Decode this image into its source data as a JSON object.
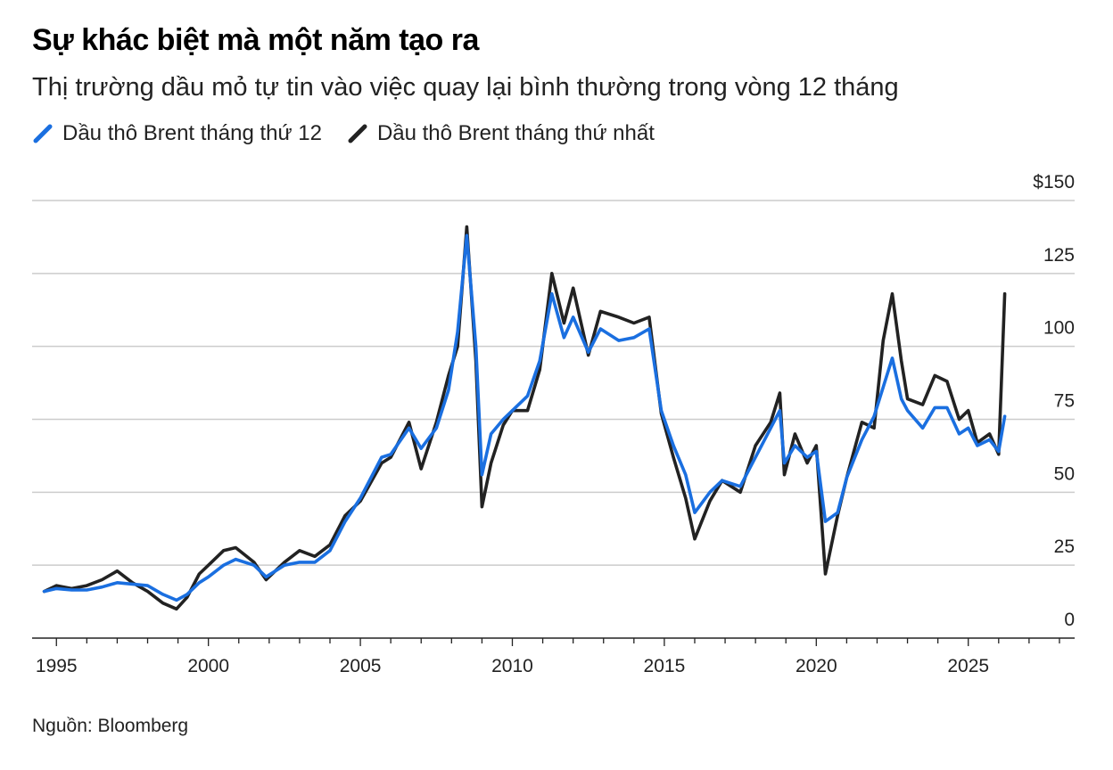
{
  "header": {
    "title": "Sự khác biệt mà một năm tạo ra",
    "subtitle": "Thị trường dầu mỏ tự tin vào việc quay lại bình thường trong vòng 12 tháng"
  },
  "colors": {
    "brent_12m": "#1a6fe0",
    "brent_1m": "#222222",
    "grid": "#cccccc",
    "axis": "#222222"
  },
  "footer": {
    "source": "Nguồn: Bloomberg"
  },
  "chart_data": {
    "type": "line",
    "title": "Sự khác biệt mà một năm tạo ra",
    "subtitle": "Thị trường dầu mỏ tự tin vào việc quay lại bình thường trong vòng 12 tháng",
    "xlabel": "",
    "ylabel": "",
    "xlim": [
      1994.2,
      2028.5
    ],
    "ylim": [
      0,
      150
    ],
    "y_ticks": [
      0,
      25,
      50,
      75,
      100,
      125,
      150
    ],
    "y_tick_labels": [
      "0",
      "25",
      "50",
      "75",
      "100",
      "125",
      "$150"
    ],
    "x_ticks": [
      1995,
      2000,
      2005,
      2010,
      2015,
      2020,
      2025
    ],
    "x_tick_labels": [
      "1995",
      "2000",
      "2005",
      "2010",
      "2015",
      "2020",
      "2025"
    ],
    "grid": true,
    "legend_position": "top-left",
    "series": [
      {
        "name": "Dầu thô Brent tháng thứ 12",
        "color": "#1a6fe0",
        "x": [
          1994.6,
          1995.0,
          1995.5,
          1996.0,
          1996.5,
          1997.0,
          1997.5,
          1998.0,
          1998.5,
          1998.95,
          1999.3,
          1999.7,
          2000.0,
          2000.5,
          2000.9,
          2001.5,
          2001.9,
          2002.5,
          2003.0,
          2003.5,
          2004.0,
          2004.5,
          2005.0,
          2005.7,
          2006.0,
          2006.6,
          2007.0,
          2007.5,
          2007.9,
          2008.2,
          2008.5,
          2008.8,
          2009.0,
          2009.3,
          2009.7,
          2010.0,
          2010.5,
          2010.9,
          2011.3,
          2011.7,
          2012.0,
          2012.5,
          2012.9,
          2013.5,
          2014.0,
          2014.5,
          2014.9,
          2015.3,
          2015.7,
          2016.0,
          2016.5,
          2016.9,
          2017.5,
          2018.0,
          2018.5,
          2018.8,
          2018.95,
          2019.3,
          2019.7,
          2020.0,
          2020.3,
          2020.7,
          2021.0,
          2021.5,
          2021.9,
          2022.2,
          2022.5,
          2022.8,
          2023.0,
          2023.5,
          2023.9,
          2024.3,
          2024.7,
          2025.0,
          2025.3,
          2025.7,
          2026.0,
          2026.2
        ],
        "values": [
          16,
          17,
          16.5,
          16.5,
          17.5,
          19,
          18.5,
          18,
          15,
          13,
          15,
          19,
          21,
          25,
          27,
          25,
          21,
          25,
          26,
          26,
          30,
          40,
          48,
          62,
          63,
          72,
          65,
          72,
          85,
          105,
          138,
          100,
          56,
          70,
          75,
          78,
          83,
          95,
          118,
          103,
          110,
          98,
          106,
          102,
          103,
          106,
          78,
          66,
          56,
          43,
          50,
          54,
          52,
          62,
          72,
          78,
          60,
          66,
          62,
          64,
          40,
          43,
          55,
          68,
          76,
          86,
          96,
          82,
          78,
          72,
          79,
          79,
          70,
          72,
          66,
          68,
          64,
          76
        ]
      },
      {
        "name": "Dầu thô Brent tháng thứ nhất",
        "color": "#222222",
        "x": [
          1994.6,
          1995.0,
          1995.5,
          1996.0,
          1996.5,
          1997.0,
          1997.5,
          1998.0,
          1998.5,
          1998.95,
          1999.3,
          1999.7,
          2000.0,
          2000.5,
          2000.9,
          2001.5,
          2001.9,
          2002.5,
          2003.0,
          2003.5,
          2004.0,
          2004.5,
          2005.0,
          2005.7,
          2006.0,
          2006.6,
          2007.0,
          2007.5,
          2007.9,
          2008.2,
          2008.5,
          2008.8,
          2009.0,
          2009.3,
          2009.7,
          2010.0,
          2010.5,
          2010.9,
          2011.3,
          2011.7,
          2012.0,
          2012.5,
          2012.9,
          2013.5,
          2014.0,
          2014.5,
          2014.9,
          2015.3,
          2015.7,
          2016.0,
          2016.5,
          2016.9,
          2017.5,
          2018.0,
          2018.5,
          2018.8,
          2018.95,
          2019.3,
          2019.7,
          2020.0,
          2020.3,
          2020.7,
          2021.0,
          2021.5,
          2021.9,
          2022.2,
          2022.5,
          2022.8,
          2023.0,
          2023.5,
          2023.9,
          2024.3,
          2024.7,
          2025.0,
          2025.3,
          2025.7,
          2026.0,
          2026.2
        ],
        "values": [
          16,
          18,
          17,
          18,
          20,
          23,
          19,
          16,
          12,
          10,
          14,
          22,
          25,
          30,
          31,
          26,
          20,
          26,
          30,
          28,
          32,
          42,
          47,
          60,
          62,
          74,
          58,
          74,
          90,
          100,
          141,
          95,
          45,
          60,
          73,
          78,
          78,
          92,
          125,
          108,
          120,
          97,
          112,
          110,
          108,
          110,
          77,
          62,
          48,
          34,
          47,
          54,
          50,
          66,
          74,
          84,
          56,
          70,
          60,
          66,
          22,
          42,
          55,
          74,
          72,
          102,
          118,
          95,
          82,
          80,
          90,
          88,
          75,
          78,
          67,
          70,
          63,
          118
        ]
      }
    ]
  }
}
